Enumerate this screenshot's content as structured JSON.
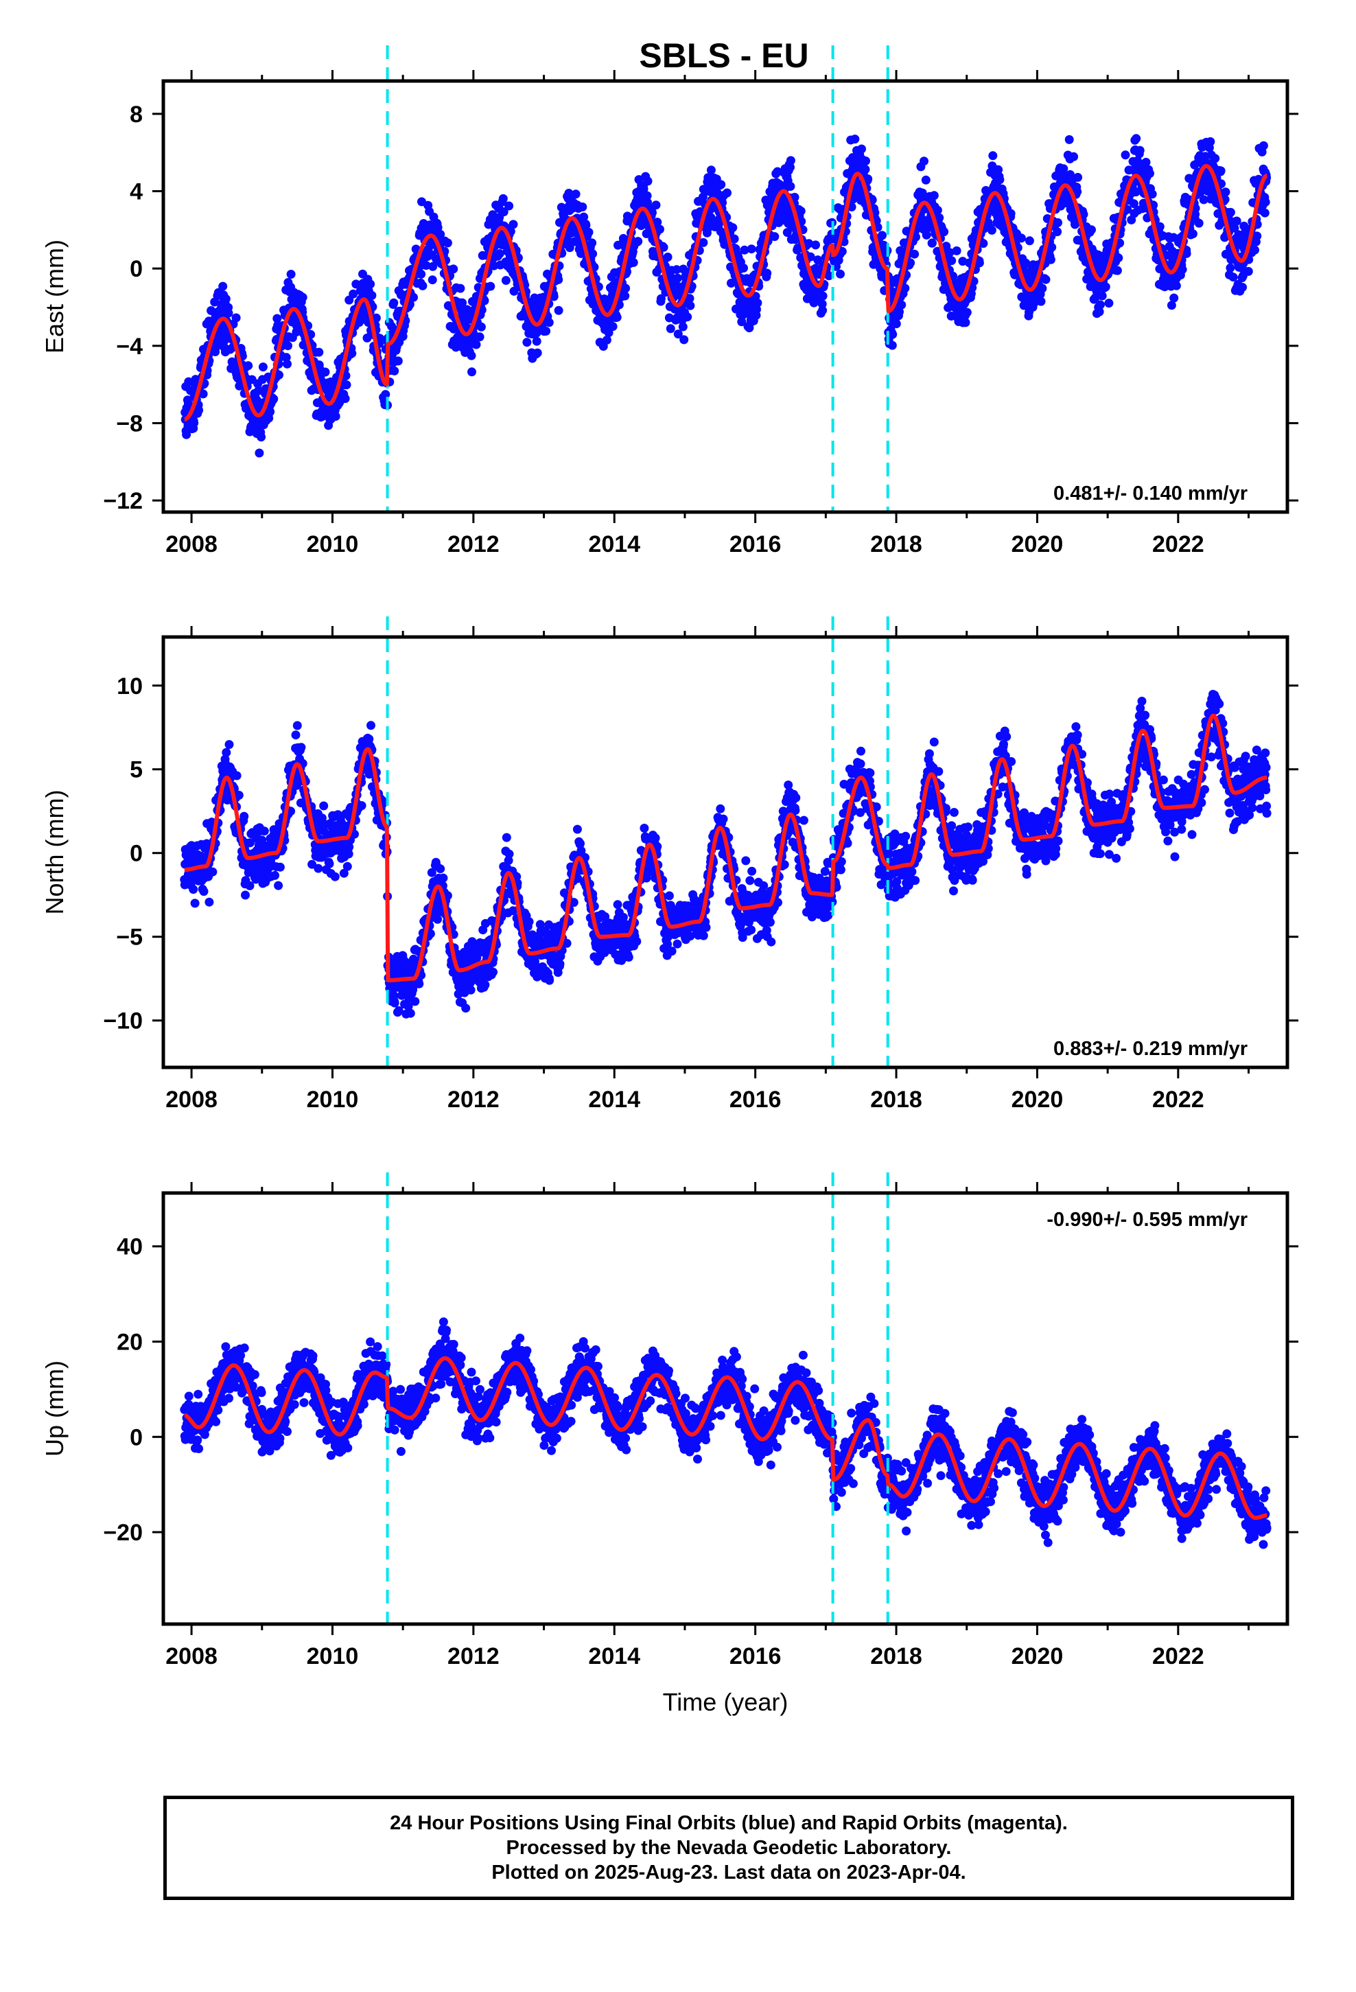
{
  "title": "SBLS - EU",
  "xlabel": "Time (year)",
  "colors": {
    "data": "#0a0aff",
    "model": "#ff1a1a",
    "offsets": "#00e5ee"
  },
  "footer": {
    "line1": "24 Hour Positions Using Final Orbits (blue) and Rapid Orbits (magenta).",
    "line2": "Processed by the Nevada Geodetic Laboratory.",
    "line3": "Plotted on 2025-Aug-23. Last data on 2023-Apr-04."
  },
  "chart_data": [
    {
      "type": "scatter",
      "ylabel": "East (mm)",
      "rate_label": "0.481+/- 0.140 mm/yr",
      "xlim": [
        2007.6,
        2023.55
      ],
      "ylim": [
        -12.6,
        9.7
      ],
      "x_ticks": [
        "2008",
        "2010",
        "2012",
        "2014",
        "2016",
        "2018",
        "2020",
        "2022"
      ],
      "y_ticks": [
        "8",
        "4",
        "0",
        "-4",
        "-8",
        "-12"
      ],
      "grid": false,
      "offsets": [
        2010.78,
        2017.1,
        2017.88
      ],
      "series": [
        {
          "name": "Final Orbits",
          "kind": "daily positions",
          "x_range": [
            2007.9,
            2023.26
          ]
        },
        {
          "name": "",
          "kind": "model fit",
          "x": [
            2007.9,
            2008.45,
            2008.95,
            2009.45,
            2009.95,
            2010.45,
            2010.77,
            2010.79,
            2011.4,
            2011.9,
            2012.4,
            2012.9,
            2013.4,
            2013.9,
            2014.4,
            2014.9,
            2015.4,
            2015.9,
            2016.4,
            2016.9,
            2017.09,
            2017.11,
            2017.45,
            2017.87,
            2017.89,
            2018.4,
            2018.9,
            2019.4,
            2019.9,
            2020.4,
            2020.9,
            2021.4,
            2021.9,
            2022.4,
            2022.9,
            2023.26
          ],
          "y": [
            -7.8,
            -2.6,
            -7.6,
            -2.1,
            -7.0,
            -1.6,
            -6.0,
            -3.9,
            1.7,
            -3.4,
            2.1,
            -2.9,
            2.6,
            -2.4,
            3.1,
            -1.9,
            3.6,
            -1.4,
            4.0,
            -0.9,
            1.2,
            0.7,
            4.9,
            0.0,
            -2.2,
            3.4,
            -1.6,
            3.9,
            -1.1,
            4.3,
            -0.6,
            4.8,
            -0.2,
            5.3,
            0.4,
            4.8
          ]
        }
      ]
    },
    {
      "type": "scatter",
      "ylabel": "North (mm)",
      "rate_label": "0.883+/- 0.219 mm/yr",
      "xlim": [
        2007.6,
        2023.55
      ],
      "ylim": [
        -12.8,
        12.9
      ],
      "x_ticks": [
        "2008",
        "2010",
        "2012",
        "2014",
        "2016",
        "2018",
        "2020",
        "2022"
      ],
      "y_ticks": [
        "10",
        "5",
        "0",
        "-5",
        "-10"
      ],
      "grid": false,
      "offsets": [
        2010.78,
        2017.1,
        2017.88
      ],
      "series": [
        {
          "name": "Final Orbits",
          "kind": "daily positions",
          "x_range": [
            2007.9,
            2023.26
          ]
        },
        {
          "name": "",
          "kind": "model fit",
          "x": [
            2007.9,
            2008.2,
            2008.5,
            2008.8,
            2009.2,
            2009.5,
            2009.8,
            2010.2,
            2010.5,
            2010.77,
            2010.79,
            2011.15,
            2011.5,
            2011.8,
            2012.2,
            2012.5,
            2012.8,
            2013.2,
            2013.5,
            2013.8,
            2014.2,
            2014.5,
            2014.8,
            2015.2,
            2015.5,
            2015.8,
            2016.2,
            2016.5,
            2016.8,
            2017.09,
            2017.11,
            2017.5,
            2017.87,
            2017.89,
            2018.2,
            2018.5,
            2018.8,
            2019.2,
            2019.5,
            2019.8,
            2020.2,
            2020.5,
            2020.8,
            2021.2,
            2021.5,
            2021.8,
            2022.2,
            2022.5,
            2022.8,
            2023.26
          ],
          "y": [
            -1.0,
            -0.8,
            4.5,
            -0.3,
            0.0,
            5.3,
            0.7,
            0.9,
            6.2,
            1.6,
            -7.6,
            -7.5,
            -2.0,
            -7.0,
            -6.5,
            -1.2,
            -6.0,
            -5.7,
            -0.3,
            -5.0,
            -4.9,
            0.5,
            -4.4,
            -4.1,
            1.5,
            -3.3,
            -3.1,
            2.3,
            -2.4,
            -2.5,
            -0.5,
            4.5,
            -0.7,
            -0.9,
            -0.7,
            4.7,
            -0.1,
            0.1,
            5.6,
            0.8,
            1.0,
            6.4,
            1.7,
            1.9,
            7.3,
            2.7,
            2.8,
            8.2,
            3.6,
            4.5
          ]
        }
      ]
    },
    {
      "type": "scatter",
      "ylabel": "Up (mm)",
      "rate_label": "-0.990+/- 0.595 mm/yr",
      "xlabel": "Time (year)",
      "xlim": [
        2007.6,
        2023.55
      ],
      "ylim": [
        -39.3,
        51.2
      ],
      "x_ticks": [
        "2008",
        "2010",
        "2012",
        "2014",
        "2016",
        "2018",
        "2020",
        "2022"
      ],
      "y_ticks": [
        "40",
        "20",
        "0",
        "-20"
      ],
      "grid": false,
      "offsets": [
        2010.78,
        2017.1,
        2017.88
      ],
      "series": [
        {
          "name": "Final Orbits",
          "kind": "daily positions",
          "x_range": [
            2007.9,
            2023.26
          ]
        },
        {
          "name": "",
          "kind": "model fit",
          "x": [
            2007.9,
            2008.1,
            2008.6,
            2009.1,
            2009.6,
            2010.1,
            2010.6,
            2010.77,
            2010.79,
            2011.1,
            2011.6,
            2012.1,
            2012.6,
            2013.1,
            2013.6,
            2014.1,
            2014.6,
            2015.1,
            2015.6,
            2016.1,
            2016.6,
            2017.09,
            2017.11,
            2017.6,
            2017.87,
            2017.89,
            2018.1,
            2018.6,
            2019.1,
            2019.6,
            2020.1,
            2020.6,
            2021.1,
            2021.6,
            2022.1,
            2022.6,
            2023.1,
            2023.26
          ],
          "y": [
            4.5,
            2.0,
            15.0,
            1.0,
            14.0,
            0.5,
            13.5,
            12.5,
            6.0,
            4.0,
            16.5,
            3.5,
            15.5,
            2.5,
            14.5,
            1.5,
            13.0,
            0.5,
            12.5,
            -0.5,
            11.5,
            -0.5,
            -9.0,
            3.5,
            -8.0,
            -10.0,
            -12.5,
            0.5,
            -13.5,
            -0.5,
            -14.5,
            -1.5,
            -15.5,
            -2.5,
            -16.5,
            -3.5,
            -17.0,
            -16.5
          ]
        }
      ]
    }
  ]
}
